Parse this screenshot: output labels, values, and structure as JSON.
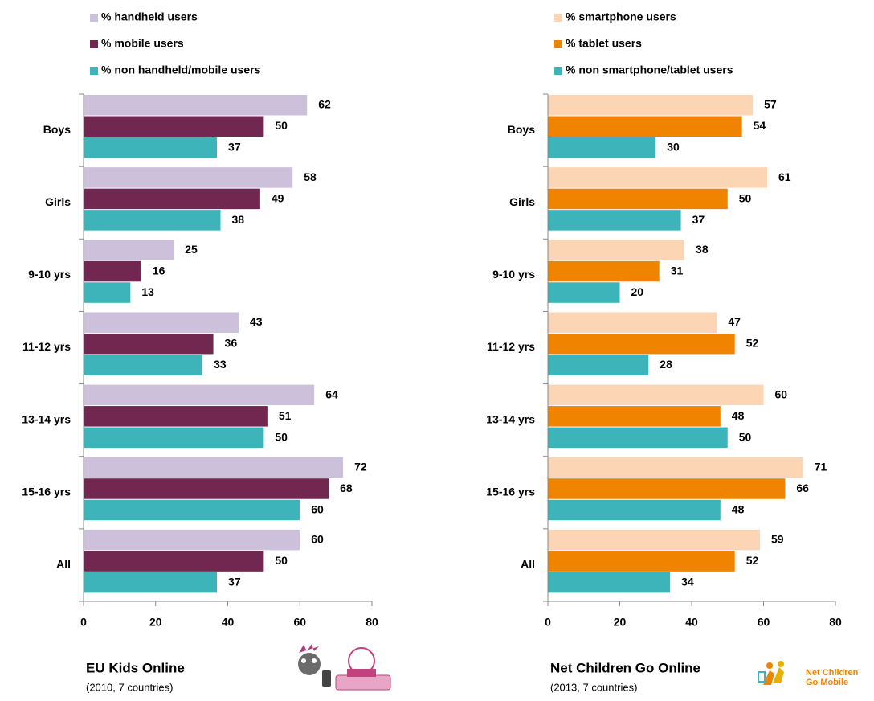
{
  "chart_data": [
    {
      "type": "bar",
      "orientation": "horizontal",
      "title": "EU Kids Online",
      "subtitle": "(2010, 7 countries)",
      "categories": [
        "Boys",
        "Girls",
        "9-10 yrs",
        "11-12 yrs",
        "13-14 yrs",
        "15-16 yrs",
        "All"
      ],
      "series": [
        {
          "name": "% handheld users",
          "color": "#ccc0da",
          "values": [
            62,
            58,
            25,
            43,
            64,
            72,
            60
          ]
        },
        {
          "name": "% mobile users",
          "color": "#722750",
          "values": [
            50,
            49,
            16,
            36,
            51,
            68,
            50
          ]
        },
        {
          "name": "% non handheld/mobile users",
          "color": "#3cb4b9",
          "values": [
            37,
            38,
            13,
            33,
            50,
            60,
            37
          ]
        }
      ],
      "xlim": [
        0,
        80
      ],
      "xticks": [
        0,
        20,
        40,
        60,
        80
      ],
      "legend": "top-left"
    },
    {
      "type": "bar",
      "orientation": "horizontal",
      "title": "Net Children Go Online",
      "subtitle": "(2013, 7 countries)",
      "logo": [
        "Net Children",
        "Go Mobile"
      ],
      "categories": [
        "Boys",
        "Girls",
        "9-10 yrs",
        "11-12 yrs",
        "13-14 yrs",
        "15-16 yrs",
        "All"
      ],
      "series": [
        {
          "name": "% smartphone users",
          "color": "#fcd5b5",
          "values": [
            57,
            61,
            38,
            47,
            60,
            71,
            59
          ]
        },
        {
          "name": "% tablet users",
          "color": "#f08300",
          "values": [
            54,
            50,
            31,
            52,
            48,
            66,
            52
          ]
        },
        {
          "name": "% non smartphone/tablet users",
          "color": "#3cb4b9",
          "values": [
            30,
            37,
            20,
            28,
            50,
            48,
            34
          ]
        }
      ],
      "xlim": [
        0,
        80
      ],
      "xticks": [
        0,
        20,
        40,
        60,
        80
      ],
      "legend": "top-left"
    }
  ]
}
